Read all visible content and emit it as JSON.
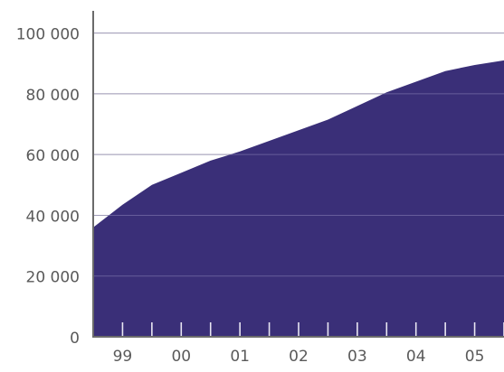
{
  "chart_data": {
    "type": "area",
    "title": "",
    "xlabel": "",
    "ylabel": "",
    "x": [
      1998.5,
      1999.0,
      1999.5,
      2000.0,
      2000.5,
      2001.0,
      2001.5,
      2002.0,
      2002.5,
      2003.0,
      2003.5,
      2004.0,
      2004.5,
      2005.0,
      2005.5
    ],
    "y": [
      36000,
      43500,
      50000,
      54000,
      58000,
      61000,
      64500,
      68000,
      71500,
      76000,
      80500,
      84000,
      87500,
      89500,
      91000
    ],
    "xlim": [
      1998.5,
      2005.5
    ],
    "ylim": [
      0,
      110000
    ],
    "x_ticks": [
      "99",
      "00",
      "01",
      "02",
      "03",
      "04",
      "05"
    ],
    "y_ticks": [
      "0",
      "20 000",
      "40 000",
      "60 000",
      "80 000",
      "100 000"
    ],
    "y_tick_values": [
      0,
      20000,
      40000,
      60000,
      80000,
      100000
    ],
    "grid": true,
    "legend": "none",
    "colors": {
      "area": "#3a2f78",
      "grid": "#b8b8b8",
      "axis": "#6b6b6b",
      "text": "#5a5a5a"
    }
  }
}
